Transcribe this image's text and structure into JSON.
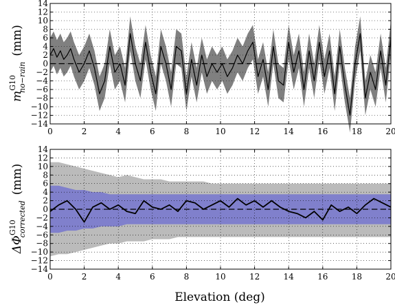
{
  "chart_data": [
    {
      "type": "line",
      "xlabel": "",
      "ylabel_main": "m",
      "ylabel_sup": "G10",
      "ylabel_sub": "no−rain",
      "ylabel_unit": "(mm)",
      "xlim": [
        0,
        20
      ],
      "ylim": [
        -14,
        14
      ],
      "xticks": [
        0,
        2,
        4,
        6,
        8,
        10,
        12,
        14,
        16,
        18,
        20
      ],
      "yticks": [
        -14,
        -12,
        -10,
        -8,
        -6,
        -4,
        -2,
        0,
        2,
        4,
        6,
        8,
        10,
        12,
        14
      ],
      "grid": true,
      "reference_line": 0,
      "colors": {
        "band": "#808080",
        "line": "#000000"
      },
      "series": [
        {
          "x": [
            0,
            0.2,
            0.4,
            0.6,
            0.8,
            1.0,
            1.2,
            1.4,
            1.7,
            2.0,
            2.3,
            2.6,
            2.9,
            3.2,
            3.5,
            3.8,
            4.1,
            4.4,
            4.7,
            5.0,
            5.3,
            5.6,
            5.9,
            6.2,
            6.5,
            6.8,
            7.1,
            7.4,
            7.7,
            8.0,
            8.3,
            8.6,
            8.9,
            9.2,
            9.5,
            9.8,
            10.1,
            10.4,
            10.7,
            11.0,
            11.3,
            11.6,
            11.9,
            12.2,
            12.5,
            12.8,
            13.1,
            13.4,
            13.7,
            14.0,
            14.3,
            14.6,
            14.9,
            15.2,
            15.5,
            15.8,
            16.1,
            16.4,
            16.7,
            17.0,
            17.3,
            17.6,
            17.9,
            18.2,
            18.5,
            18.8,
            19.1,
            19.4,
            19.7,
            20.0
          ],
          "y": [
            2,
            3.5,
            1.5,
            3,
            1,
            2,
            3.5,
            1,
            -2,
            0,
            3,
            -1,
            -7,
            -4,
            4,
            -2,
            0,
            -5,
            7,
            0,
            -4,
            5,
            -2,
            -7,
            4,
            0,
            -6,
            4,
            3,
            -7,
            1,
            -5,
            2,
            -3,
            0,
            -2,
            0,
            -3,
            -1,
            2,
            0,
            3,
            5,
            -3,
            1,
            -6,
            4,
            -4,
            -5,
            5,
            -2,
            3,
            -6,
            3,
            -4,
            5,
            -3,
            3,
            -7,
            4,
            -5,
            -12,
            0,
            7,
            -8,
            -2,
            -6,
            3,
            -5,
            6
          ],
          "band": 4
        }
      ]
    },
    {
      "type": "line",
      "xlabel": "Elevation (deg)",
      "ylabel_main": "ΔΦ",
      "ylabel_sup": "G10",
      "ylabel_sub": "corrected",
      "ylabel_unit": "(mm)",
      "xlim": [
        0,
        20
      ],
      "ylim": [
        -14,
        14
      ],
      "xticks": [
        0,
        2,
        4,
        6,
        8,
        10,
        12,
        14,
        16,
        18,
        20
      ],
      "yticks": [
        -14,
        -12,
        -10,
        -8,
        -6,
        -4,
        -2,
        0,
        2,
        4,
        6,
        8,
        10,
        12,
        14
      ],
      "grid": true,
      "reference_line": 0,
      "colors": {
        "outer_band": "#bbbbbb",
        "inner_band": "#8080cc",
        "line": "#000000"
      },
      "series": [
        {
          "x": [
            0,
            0.5,
            1.0,
            1.5,
            2.0,
            2.5,
            3.0,
            3.5,
            4.0,
            4.5,
            5.0,
            5.5,
            6.0,
            6.5,
            7.0,
            7.5,
            8.0,
            8.5,
            9.0,
            9.5,
            10.0,
            10.5,
            11.0,
            11.5,
            12.0,
            12.5,
            13.0,
            13.5,
            14.0,
            14.5,
            15.0,
            15.5,
            16.0,
            16.5,
            17.0,
            17.5,
            18.0,
            18.5,
            19.0,
            19.5,
            20.0
          ],
          "y": [
            -0.5,
            1,
            2,
            0,
            -3,
            0.5,
            1.5,
            0,
            1,
            -0.5,
            -1,
            2,
            0.5,
            0,
            1,
            -0.5,
            2,
            1.5,
            0,
            1,
            2,
            0.5,
            2.5,
            1,
            2,
            0.5,
            2,
            0.5,
            -0.5,
            -1,
            -2,
            -0.5,
            -2.5,
            1,
            -0.5,
            0.5,
            -1,
            1,
            2.5,
            1.5,
            0.5
          ],
          "inner_upper": [
            5.5,
            5.5,
            5,
            4.5,
            4.5,
            4,
            4,
            3.5,
            3.5,
            3.5,
            3.5,
            3.5,
            3.5,
            3.5,
            3.5,
            3.5,
            3.5,
            3.5,
            3.5,
            3.5,
            3.5,
            3.5,
            3.5,
            3.5,
            3.5,
            3.5,
            3.5,
            3.5,
            3.5,
            3.5,
            3.5,
            3.5,
            3.5,
            3.5,
            3.5,
            3.5,
            3.5,
            3.5,
            3.5,
            3.5,
            3.5
          ],
          "inner_lower": [
            -5.5,
            -5.5,
            -5,
            -5,
            -4.5,
            -4.5,
            -4,
            -4,
            -4,
            -3.5,
            -3.5,
            -3.5,
            -3.5,
            -3.5,
            -3.5,
            -3.5,
            -3.5,
            -3.5,
            -3.5,
            -3.5,
            -3.5,
            -3.5,
            -3.5,
            -3.5,
            -3.5,
            -3.5,
            -3.5,
            -3.5,
            -3.5,
            -3.5,
            -3.5,
            -3.5,
            -3.5,
            -3.5,
            -3.5,
            -3.5,
            -3.5,
            -3.5,
            -3.5,
            -3.5,
            -3.5
          ],
          "outer_upper": [
            11,
            11,
            10.5,
            10,
            9.5,
            9,
            8.5,
            8,
            7.5,
            8,
            7.5,
            7,
            7,
            7,
            6.5,
            6.5,
            6.5,
            6.5,
            6.5,
            6,
            6,
            6,
            6,
            6,
            6,
            6,
            6,
            6,
            6,
            6,
            6,
            6,
            6,
            6,
            6,
            6,
            6,
            6,
            6,
            6,
            6
          ],
          "outer_lower": [
            -11,
            -10.5,
            -10.5,
            -10,
            -9.5,
            -9,
            -8.5,
            -8,
            -8,
            -7.5,
            -7.5,
            -7.5,
            -7,
            -7,
            -7,
            -6.5,
            -6.5,
            -6.5,
            -6.5,
            -6.5,
            -6.5,
            -6.5,
            -6.5,
            -6.5,
            -6.5,
            -6.5,
            -6.5,
            -6.5,
            -6.5,
            -6.5,
            -6.5,
            -6.5,
            -6.5,
            -6.5,
            -6.5,
            -6.5,
            -6.5,
            -6.5,
            -6.5,
            -6.5,
            -6.5
          ]
        }
      ]
    }
  ]
}
